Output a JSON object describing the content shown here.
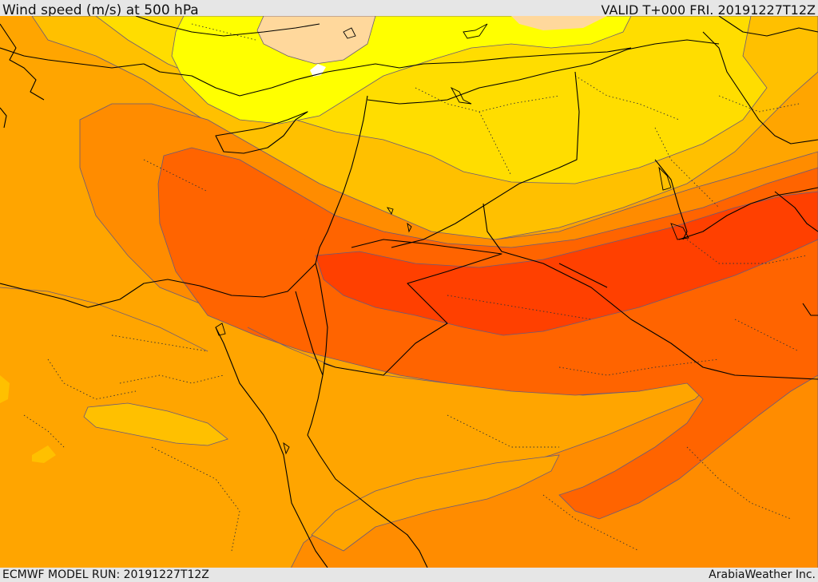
{
  "header": {
    "title": "Wind speed (m/s) at 500 hPa",
    "valid": "VALID T+000 FRI. 20191227T12Z"
  },
  "footer": {
    "model_run": "ECMWF MODEL RUN: 20191227T12Z",
    "credit": "ArabiaWeather Inc."
  },
  "map": {
    "variable": "wind speed",
    "level": "500 hPa",
    "colors": {
      "very_light": "#ffffff",
      "peach": "#ffd89c",
      "yellow": "#ffff00",
      "gold": "#ffdd00",
      "light_orange": "#ffc000",
      "orange": "#ffa500",
      "dark_orange": "#ff8c00",
      "red_orange": "#ff6400",
      "red": "#ff4000",
      "contour": "#6a5a7a",
      "border": "#000000"
    }
  }
}
